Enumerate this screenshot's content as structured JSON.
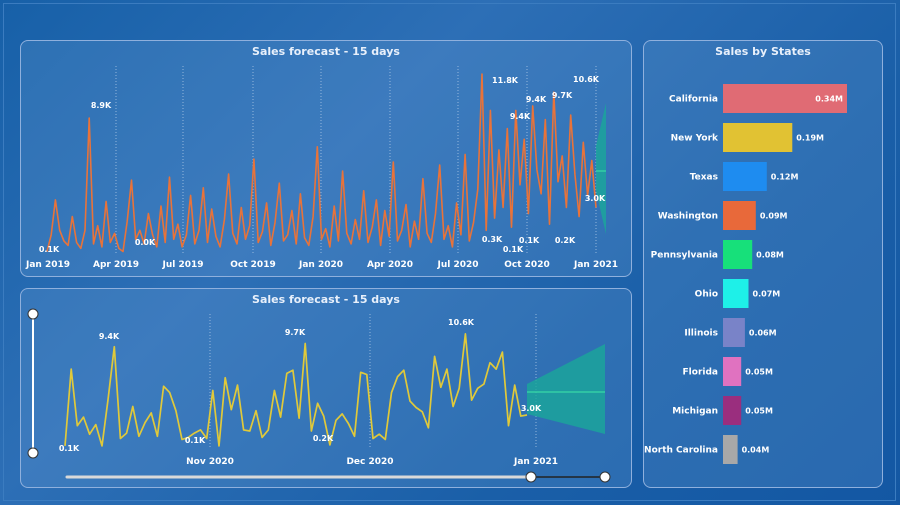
{
  "colors": {
    "forecast_band": "#1aa89a",
    "forecast_line": "#3ee8a8",
    "top_series": "#e8733a",
    "bottom_series": "#e0c93a"
  },
  "chart_data": [
    {
      "type": "line",
      "title": "Sales forecast - 15 days",
      "xlabel": "",
      "ylabel": "",
      "x_ticks": [
        "Jan 2019",
        "Apr 2019",
        "Jul 2019",
        "Oct 2019",
        "Jan 2020",
        "Apr 2020",
        "Jul 2020",
        "Oct 2020",
        "Jan 2021"
      ],
      "x_range": [
        "2019-01-01",
        "2021-01-15"
      ],
      "ylim": [
        0,
        12000
      ],
      "grid": "vertical dotted",
      "series": [
        {
          "name": "",
          "values": [
            100,
            1200,
            3500,
            1500,
            800,
            500,
            2400,
            700,
            300,
            1500,
            8900,
            600,
            1800,
            400,
            3400,
            700,
            1300,
            300,
            100,
            2100,
            4800,
            900,
            1500,
            600,
            2600,
            1200,
            400,
            3100,
            700,
            5000,
            900,
            1900,
            400,
            1200,
            3800,
            600,
            1500,
            4300,
            700,
            2900,
            1100,
            400,
            2200,
            5200,
            1300,
            600,
            3000,
            900,
            1800,
            6200,
            700,
            1400,
            3300,
            500,
            2000,
            4600,
            800,
            1200,
            2800,
            600,
            3900,
            1000,
            500,
            2400,
            7000,
            900,
            1600,
            400,
            3100,
            800,
            5400,
            1300,
            600,
            2200,
            900,
            4100,
            700,
            1700,
            3500,
            500,
            2800,
            1100,
            6000,
            800,
            1500,
            3200,
            400,
            2100,
            900,
            4900,
            1300,
            700,
            2600,
            5800,
            900,
            1800,
            400,
            3300,
            1200,
            6500,
            800,
            2000,
            4200,
            11800,
            1500,
            9400,
            2300,
            6800,
            3000,
            8200,
            1700,
            9400,
            4500,
            7500,
            2600,
            9700,
            5500,
            3900,
            8800,
            1900,
            10600,
            4700,
            6400,
            3000,
            9100,
            5200,
            2400,
            7300,
            3800,
            6100,
            3000
          ]
        }
      ],
      "data_labels": [
        {
          "x": "2019-01-10",
          "text": "0.1K"
        },
        {
          "x": "2019-03-15",
          "text": "8.9K"
        },
        {
          "x": "2019-05-25",
          "text": "0.0K"
        },
        {
          "x": "2020-08-10",
          "text": "0.3K"
        },
        {
          "x": "2020-08-25",
          "text": "11.8K"
        },
        {
          "x": "2020-09-05",
          "text": "0.1K"
        },
        {
          "x": "2020-09-12",
          "text": "9.4K"
        },
        {
          "x": "2020-09-25",
          "text": "9.4K"
        },
        {
          "x": "2020-10-05",
          "text": "0.1K"
        },
        {
          "x": "2020-11-10",
          "text": "9.7K"
        },
        {
          "x": "2020-11-20",
          "text": "0.2K"
        },
        {
          "x": "2020-12-20",
          "text": "10.6K"
        },
        {
          "x": "2021-01-05",
          "text": "3.0K"
        }
      ],
      "forecast": {
        "days": 15,
        "value": 3000
      }
    },
    {
      "type": "line",
      "title": "Sales forecast - 15 days",
      "xlabel": "",
      "ylabel": "",
      "x_ticks": [
        "Nov 2020",
        "Dec 2020",
        "Jan 2021"
      ],
      "ylim": [
        0,
        12000
      ],
      "grid": "vertical dotted",
      "series": [
        {
          "name": "",
          "values": [
            100,
            7300,
            2000,
            2800,
            1200,
            2100,
            100,
            4500,
            9400,
            800,
            1300,
            3800,
            1000,
            2300,
            3200,
            1000,
            5700,
            5100,
            3400,
            700,
            900,
            1300,
            1600,
            800,
            5300,
            100,
            6500,
            3500,
            5800,
            1600,
            1500,
            3400,
            900,
            1600,
            5300,
            2800,
            6900,
            7200,
            2700,
            9700,
            1500,
            4100,
            2900,
            200,
            2500,
            3100,
            2200,
            1000,
            7000,
            6800,
            800,
            1200,
            700,
            5100,
            6600,
            7200,
            4300,
            3700,
            3300,
            1800,
            8500,
            5600,
            7300,
            3800,
            5500,
            10600,
            4400,
            5500,
            5900,
            7900,
            7300,
            8900,
            2000,
            5800,
            2900,
            3000
          ]
        }
      ],
      "data_labels": [
        {
          "text": "0.1K"
        },
        {
          "text": "9.4K"
        },
        {
          "text": "0.1K"
        },
        {
          "text": "9.7K"
        },
        {
          "text": "0.2K"
        },
        {
          "text": "10.6K"
        },
        {
          "text": "3.0K"
        }
      ],
      "forecast": {
        "days": 15,
        "value": 3000
      }
    },
    {
      "type": "bar",
      "orientation": "horizontal",
      "title": "Sales by States",
      "categories": [
        "California",
        "New York",
        "Texas",
        "Washington",
        "Pennsylvania",
        "Ohio",
        "Illinois",
        "Florida",
        "Michigan",
        "North Carolina"
      ],
      "values": [
        0.34,
        0.19,
        0.12,
        0.09,
        0.08,
        0.07,
        0.06,
        0.05,
        0.05,
        0.04
      ],
      "value_labels": [
        "0.34M",
        "0.19M",
        "0.12M",
        "0.09M",
        "0.08M",
        "0.07M",
        "0.06M",
        "0.05M",
        "0.05M",
        "0.04M"
      ],
      "bar_colors": [
        "#e06b74",
        "#e1c233",
        "#1e8cf0",
        "#e8693a",
        "#17e07a",
        "#1ef0e8",
        "#7983c8",
        "#e072c0",
        "#9a2e7e",
        "#a8a8a8"
      ]
    }
  ]
}
